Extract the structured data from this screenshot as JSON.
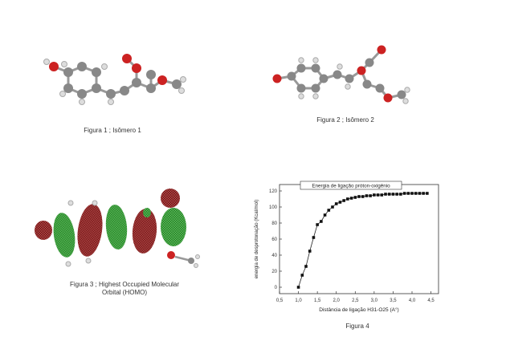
{
  "figures": {
    "fig1_caption": "Figura 1 ; Isômero 1",
    "fig2_caption": "Figura 2 ; Isômero 2",
    "fig3_caption_line1": "Figura 3 ; Highest Occupied Molecular",
    "fig3_caption_line2": "Orbital (HOMO)",
    "fig4_caption": "Figura 4"
  },
  "chart_data": {
    "type": "line",
    "title": "Energia de ligação próton-oxigênio",
    "xlabel": "Distância de ligação H31-O25 (A°)",
    "ylabel": "energia de desprotonação (Kcal/mol)",
    "xlim": [
      0.5,
      4.7
    ],
    "ylim": [
      -8,
      128
    ],
    "xticks": [
      "0,5",
      "1,0",
      "1,5",
      "2,0",
      "2,5",
      "3,0",
      "3,5",
      "4,0",
      "4,5"
    ],
    "yticks": [
      "0",
      "20",
      "40",
      "60",
      "80",
      "100",
      "120"
    ],
    "marker": "square",
    "x": [
      1.0,
      1.1,
      1.2,
      1.3,
      1.4,
      1.5,
      1.6,
      1.7,
      1.8,
      1.9,
      2.0,
      2.1,
      2.2,
      2.3,
      2.4,
      2.5,
      2.6,
      2.7,
      2.8,
      2.9,
      3.0,
      3.1,
      3.2,
      3.3,
      3.4,
      3.5,
      3.6,
      3.7,
      3.8,
      3.9,
      4.0,
      4.1,
      4.2,
      4.3,
      4.4
    ],
    "y": [
      0,
      15,
      26,
      45,
      62,
      78,
      82,
      90,
      96,
      100,
      104,
      106,
      108,
      110,
      111,
      112,
      113,
      113,
      114,
      114,
      115,
      115,
      115,
      116,
      116,
      116,
      116,
      116,
      117,
      117,
      117,
      117,
      117,
      117,
      117
    ]
  }
}
